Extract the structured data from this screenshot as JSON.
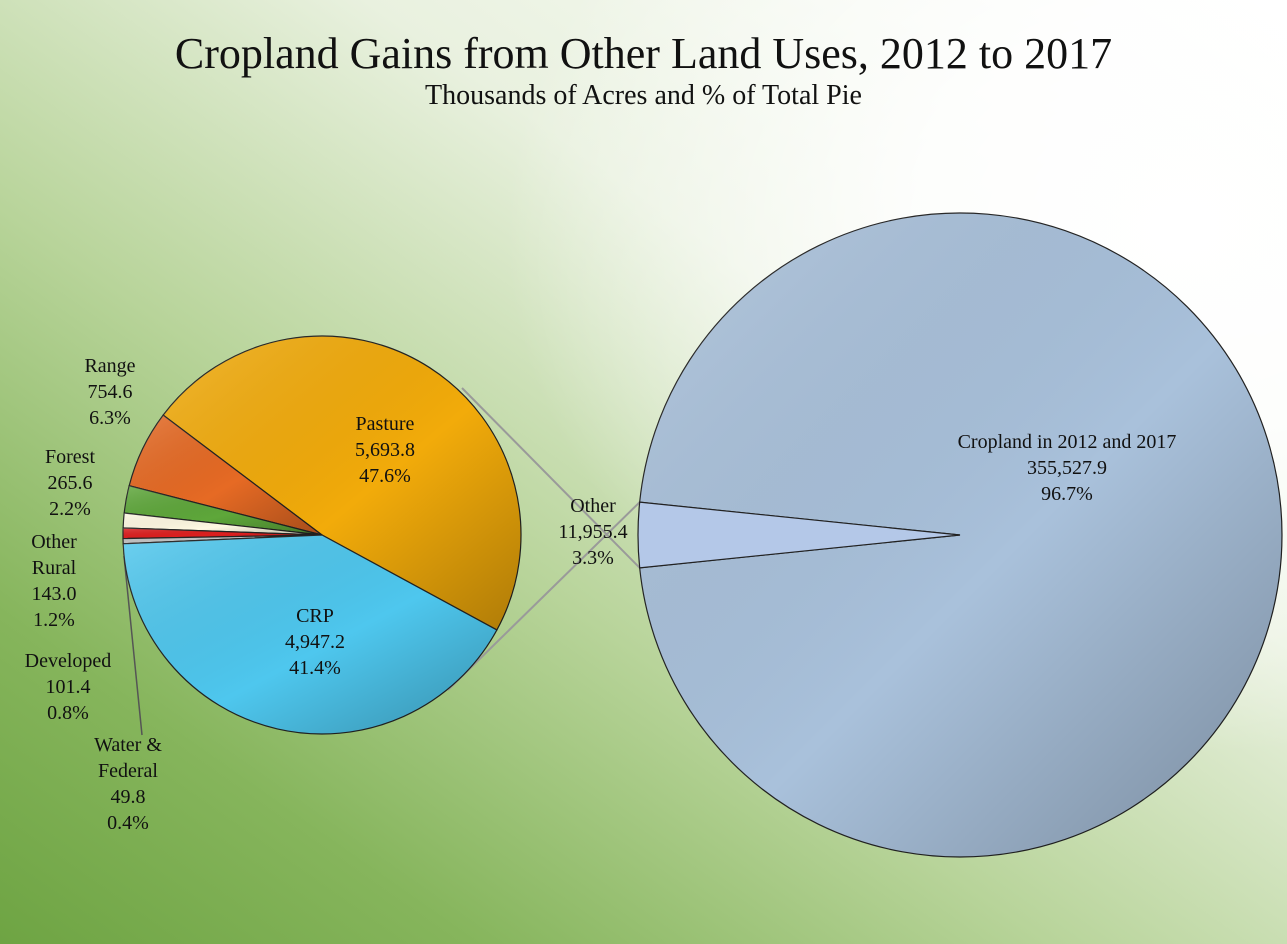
{
  "chart_data": [
    {
      "type": "pie",
      "title": "Cropland Gains from Other Land Uses, 2012 to 2017",
      "subtitle": "Thousands of Acres and % of Total Pie",
      "units": "Thousands of Acres",
      "slices": [
        {
          "key": "cropland",
          "name": "Cropland in 2012 and 2017",
          "value": "355,527.9",
          "numeric": 355527.9,
          "percent": "96.7%",
          "color": "#a9c1db"
        },
        {
          "key": "other",
          "name": "Other",
          "value": "11,955.4",
          "numeric": 11955.4,
          "percent": "3.3%",
          "color": "#b4c8e8"
        }
      ]
    },
    {
      "type": "pie",
      "breakdown_of": "Other",
      "slices": [
        {
          "key": "pasture",
          "name": "Pasture",
          "value": "5,693.8",
          "numeric": 5693.8,
          "percent": "47.6%",
          "color": "#f2ab0a"
        },
        {
          "key": "crp",
          "name": "CRP",
          "value": "4,947.2",
          "numeric": 4947.2,
          "percent": "41.4%",
          "color": "#4ec7ee"
        },
        {
          "key": "water",
          "name": "Water & Federal",
          "lines": [
            "Water &",
            "Federal"
          ],
          "value": "49.8",
          "numeric": 49.8,
          "percent": "0.4%",
          "color": "#c4c4c4"
        },
        {
          "key": "developed",
          "name": "Developed",
          "value": "101.4",
          "numeric": 101.4,
          "percent": "0.8%",
          "color": "#dd1f1f"
        },
        {
          "key": "otherrural",
          "name": "Other Rural",
          "lines": [
            "Other",
            "Rural"
          ],
          "value": "143.0",
          "numeric": 143.0,
          "percent": "1.2%",
          "color": "#fff9e2"
        },
        {
          "key": "forest",
          "name": "Forest",
          "value": "265.6",
          "numeric": 265.6,
          "percent": "2.2%",
          "color": "#5ea73a"
        },
        {
          "key": "range",
          "name": "Range",
          "value": "754.6",
          "numeric": 754.6,
          "percent": "6.3%",
          "color": "#e66a24"
        }
      ]
    }
  ]
}
